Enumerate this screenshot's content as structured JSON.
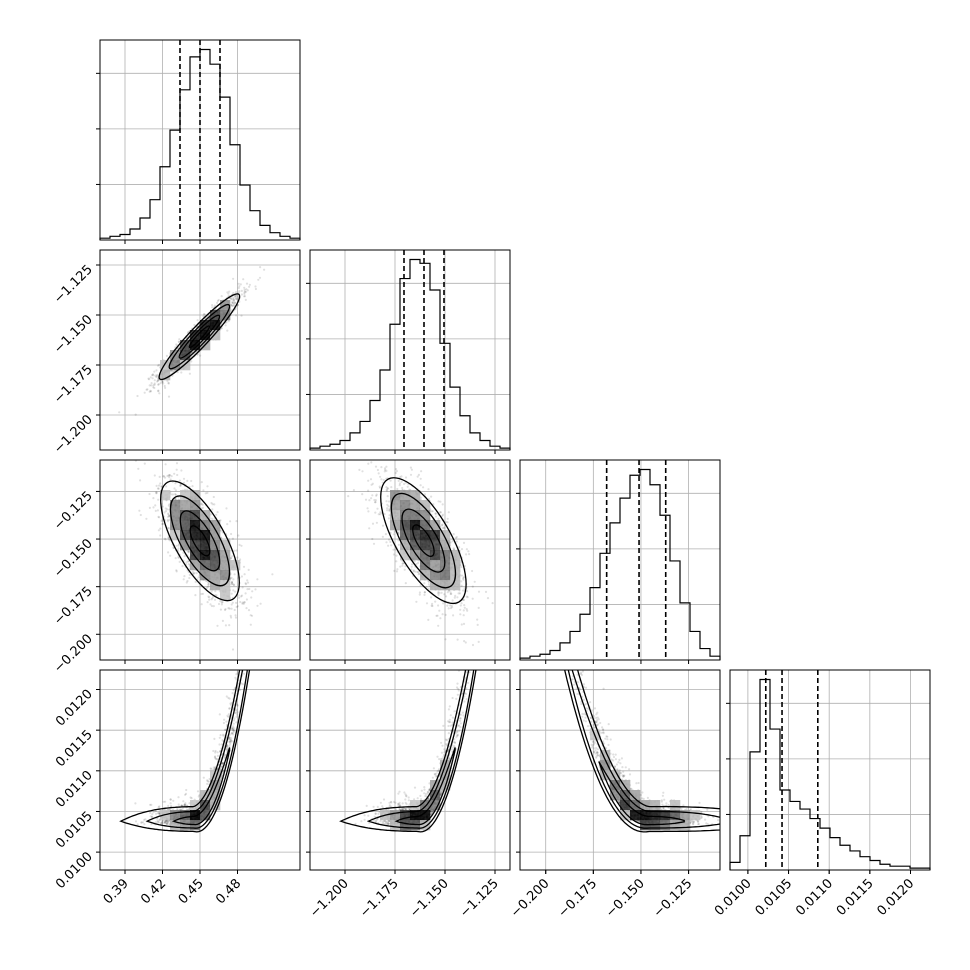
{
  "chart_data": {
    "type": "corner",
    "parameters": 4,
    "grid": true,
    "marginal_quantiles": [
      0.16,
      0.5,
      0.84
    ],
    "params": [
      {
        "range": [
          0.37,
          0.53
        ],
        "ticks": [
          0.39,
          0.42,
          0.45,
          0.48
        ],
        "tick_labels": [
          "0.39",
          "0.42",
          "0.45",
          "0.48"
        ],
        "quantile_values": [
          0.434,
          0.45,
          0.466
        ],
        "hist": {
          "edges_start": 0.37,
          "bin_width": 0.008,
          "counts": [
            1,
            2,
            3,
            6,
            12,
            22,
            40,
            60,
            82,
            100,
            104,
            96,
            78,
            52,
            30,
            16,
            8,
            4,
            2,
            1
          ]
        }
      },
      {
        "range": [
          -1.2175,
          -1.1175
        ],
        "ticks": [
          -1.2,
          -1.175,
          -1.15,
          -1.125
        ],
        "tick_labels": [
          "−1.200",
          "−1.175",
          "−1.150",
          "−1.125"
        ],
        "quantile_values": [
          -1.1705,
          -1.1605,
          -1.1505
        ],
        "hist": {
          "edges_start": -1.2175,
          "bin_width": 0.005,
          "counts": [
            1,
            2,
            3,
            5,
            9,
            15,
            26,
            42,
            66,
            90,
            100,
            98,
            84,
            56,
            33,
            18,
            9,
            5,
            2,
            1
          ]
        }
      },
      {
        "range": [
          -0.2135,
          -0.1085
        ],
        "ticks": [
          -0.2,
          -0.175,
          -0.15,
          -0.125
        ],
        "tick_labels": [
          "−0.200",
          "−0.175",
          "−0.150",
          "−0.125"
        ],
        "quantile_values": [
          -0.168,
          -0.151,
          -0.137
        ],
        "hist": {
          "edges_start": -0.2135,
          "bin_width": 0.00525,
          "counts": [
            1,
            2,
            3,
            5,
            9,
            15,
            24,
            38,
            56,
            72,
            85,
            97,
            100,
            92,
            76,
            52,
            30,
            15,
            6,
            2
          ]
        }
      },
      {
        "range": [
          0.00978,
          0.01224
        ],
        "ticks": [
          0.01,
          0.0105,
          0.011,
          0.0115,
          0.012
        ],
        "tick_labels": [
          "0.0100",
          "0.0105",
          "0.0110",
          "0.0115",
          "0.0120"
        ],
        "quantile_values": [
          0.01022,
          0.01042,
          0.01086
        ],
        "hist": {
          "edges_start": 0.00978,
          "bin_width": 0.000123,
          "counts": [
            4,
            18,
            62,
            100,
            74,
            42,
            36,
            32,
            27,
            22,
            17,
            13,
            10,
            7,
            5,
            3,
            2,
            2,
            1,
            1
          ]
        }
      }
    ],
    "pairs": [
      {
        "x": 0,
        "y": 1,
        "ylim": [
          -1.2175,
          -1.1175
        ],
        "yticks": [
          -1.2,
          -1.175,
          -1.15,
          -1.125
        ],
        "ytick_labels": [
          "−1.200",
          "−1.175",
          "−1.150",
          "−1.125"
        ],
        "mean_y": -1.1605,
        "n_points": 1500,
        "shape": "ellipse",
        "sx": 0.016,
        "sy": 0.0105,
        "corr": 0.94
      },
      {
        "x": 0,
        "y": 2,
        "ylim": [
          -0.2135,
          -0.1085
        ],
        "yticks": [
          -0.2,
          -0.175,
          -0.15,
          -0.125
        ],
        "ytick_labels": [
          "−0.200",
          "−0.175",
          "−0.150",
          "−0.125"
        ],
        "mean_y": -0.151,
        "n_points": 1500,
        "shape": "ellipse",
        "sx": 0.016,
        "sy": 0.016,
        "corr": -0.72
      },
      {
        "x": 1,
        "y": 2,
        "ylim": [
          -0.2135,
          -0.1085
        ],
        "yticks": [
          -0.2,
          -0.175,
          -0.15,
          -0.125
        ],
        "ytick_labels": [
          "−0.200",
          "−0.175",
          "−0.150",
          "−0.125"
        ],
        "mean_y": -0.151,
        "n_points": 1500,
        "shape": "ellipse",
        "sx": 0.0105,
        "sy": 0.016,
        "corr": -0.7
      },
      {
        "x": 0,
        "y": 3,
        "ylim": [
          0.00978,
          0.01224
        ],
        "yticks": [
          0.01,
          0.0105,
          0.011,
          0.0115,
          0.012
        ],
        "ytick_labels": [
          "0.0100",
          "0.0105",
          "0.0110",
          "0.0115",
          "0.0120"
        ],
        "mode_y": 0.01038,
        "n_points": 1500,
        "shape": "banana",
        "curve": "convex",
        "x_center": 0.45,
        "x_sd": 0.016
      },
      {
        "x": 1,
        "y": 3,
        "ylim": [
          0.00978,
          0.01224
        ],
        "yticks": [
          0.01,
          0.0105,
          0.011,
          0.0115,
          0.012
        ],
        "ytick_labels": [
          "0.0100",
          "0.0105",
          "0.0110",
          "0.0115",
          "0.0120"
        ],
        "mode_y": 0.01038,
        "n_points": 1500,
        "shape": "banana",
        "curve": "convex",
        "x_center": -1.1605,
        "x_sd": 0.0105
      },
      {
        "x": 2,
        "y": 3,
        "ylim": [
          0.00978,
          0.01224
        ],
        "yticks": [
          0.01,
          0.0105,
          0.011,
          0.0115,
          0.012
        ],
        "ytick_labels": [
          "0.0100",
          "0.0105",
          "0.0110",
          "0.0115",
          "0.0120"
        ],
        "mode_y": 0.01038,
        "n_points": 1500,
        "shape": "banana",
        "curve": "decreasing",
        "x_center": -0.151,
        "x_sd": 0.016
      }
    ]
  }
}
